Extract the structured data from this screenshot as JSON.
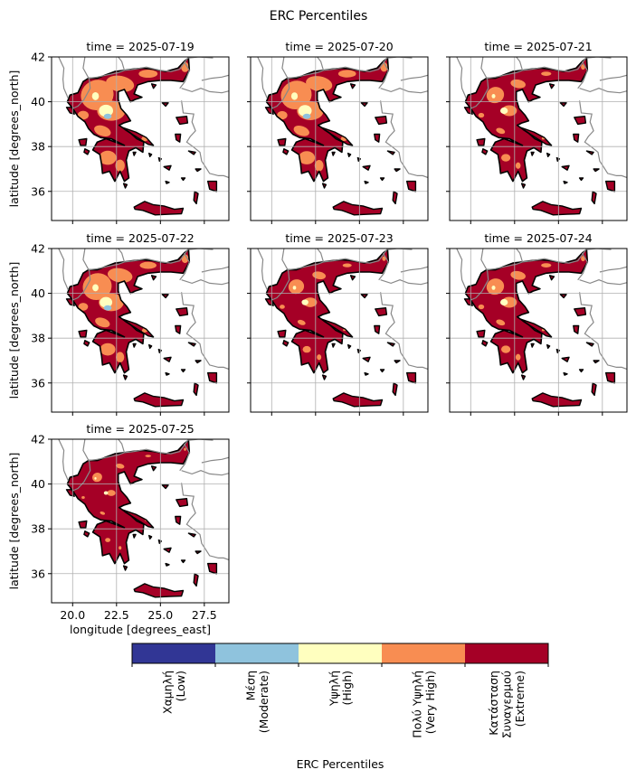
{
  "chart_data": {
    "type": "heatmap",
    "title": "ERC Percentiles",
    "xlabel": "longitude [degrees_east]",
    "ylabel": "latitude [degrees_north]",
    "xlim": [
      18.8,
      28.9
    ],
    "ylim": [
      34.7,
      42.0
    ],
    "xticks": [
      20.0,
      22.5,
      25.0,
      27.5
    ],
    "xtick_labels": [
      "20.0",
      "22.5",
      "25.0",
      "27.5"
    ],
    "yticks": [
      36,
      38,
      40,
      42
    ],
    "ytick_labels": [
      "36",
      "38",
      "40",
      "42"
    ],
    "grid": true,
    "layout": {
      "rows": 3,
      "cols": 3,
      "panels_used": 7
    },
    "panels": [
      {
        "title": "time = 2025-07-19",
        "extreme_share": 0.64
      },
      {
        "title": "time = 2025-07-20",
        "extreme_share": 0.66
      },
      {
        "title": "time = 2025-07-21",
        "extreme_share": 0.8
      },
      {
        "title": "time = 2025-07-22",
        "extreme_share": 0.68
      },
      {
        "title": "time = 2025-07-23",
        "extreme_share": 0.82
      },
      {
        "title": "time = 2025-07-24",
        "extreme_share": 0.8
      },
      {
        "title": "time = 2025-07-25",
        "extreme_share": 0.88
      }
    ],
    "colorbar": {
      "label": "ERC Percentiles",
      "orientation": "horizontal",
      "categories": [
        {
          "lines": [
            "Χαμηλή",
            "(Low)"
          ],
          "color": "#313695"
        },
        {
          "lines": [
            "Μέση",
            "(Moderate)"
          ],
          "color": "#8fc3dd"
        },
        {
          "lines": [
            "Υψηλή",
            "(High)"
          ],
          "color": "#ffffbf"
        },
        {
          "lines": [
            "Πολύ Υψηλή",
            "(Very High)"
          ],
          "color": "#f88d52"
        },
        {
          "lines": [
            "Κατάσταση",
            "Συναγερμού",
            "(Extreme)"
          ],
          "color": "#a50026"
        }
      ]
    },
    "colors": {
      "country_border": "#888888",
      "coastline": "#000000",
      "grid": "#b0b0b0"
    }
  }
}
